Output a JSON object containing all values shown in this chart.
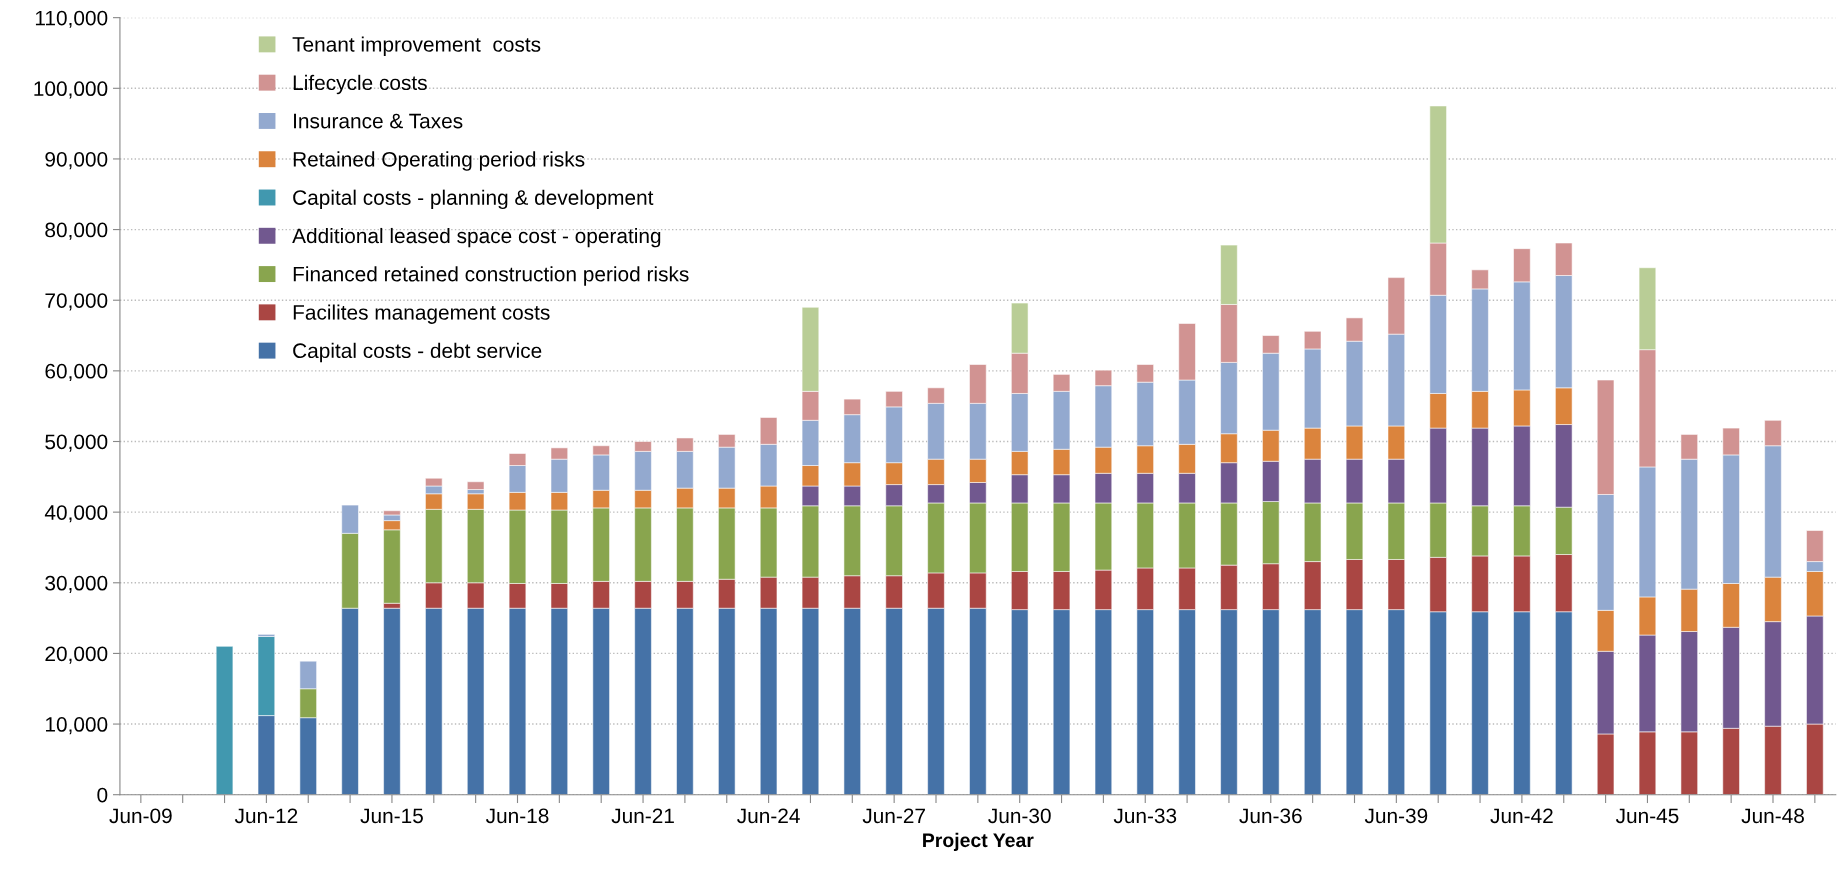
{
  "chart_data": {
    "type": "bar",
    "stacked": true,
    "xlabel": "Project Year",
    "categories": [
      "Jun-09",
      null,
      null,
      "Jun-12",
      null,
      null,
      "Jun-15",
      null,
      null,
      "Jun-18",
      null,
      null,
      "Jun-21",
      null,
      null,
      "Jun-24",
      null,
      null,
      "Jun-27",
      null,
      null,
      "Jun-30",
      null,
      null,
      "Jun-33",
      null,
      null,
      "Jun-36",
      null,
      null,
      "Jun-39",
      null,
      null,
      "Jun-42",
      null,
      null,
      "Jun-45",
      null,
      null,
      "Jun-48",
      null
    ],
    "ylim": [
      0,
      110000
    ],
    "yticks": [
      {
        "value": 0,
        "label": "0"
      },
      {
        "value": 10000,
        "label": "10,000"
      },
      {
        "value": 20000,
        "label": "20,000"
      },
      {
        "value": 30000,
        "label": "30,000"
      },
      {
        "value": 40000,
        "label": "40,000"
      },
      {
        "value": 50000,
        "label": "50,000"
      },
      {
        "value": 60000,
        "label": "60,000"
      },
      {
        "value": 70000,
        "label": "70,000"
      },
      {
        "value": 80000,
        "label": "80,000"
      },
      {
        "value": 90000,
        "label": "90,000"
      },
      {
        "value": 100000,
        "label": "100,000"
      },
      {
        "value": 110000,
        "label": "110,000"
      }
    ],
    "grid": "y",
    "legend": "top left",
    "series": [
      {
        "name": "Capital costs - debt service",
        "color": "#4572a7",
        "values": [
          null,
          null,
          null,
          11200,
          10900,
          26400,
          26400,
          26400,
          26400,
          26400,
          26400,
          26400,
          26400,
          26400,
          26400,
          26400,
          26400,
          26400,
          26400,
          26400,
          26400,
          26200,
          26200,
          26200,
          26200,
          26200,
          26200,
          26200,
          26200,
          26200,
          26200,
          25900,
          25900,
          25900,
          25900,
          null,
          null,
          null,
          null,
          null,
          null
        ]
      },
      {
        "name": "Facilites management costs",
        "color": "#aa4643",
        "values": [
          null,
          null,
          null,
          null,
          null,
          null,
          700,
          3600,
          3600,
          3500,
          3500,
          3800,
          3800,
          3800,
          4100,
          4400,
          4400,
          4600,
          4600,
          5000,
          5000,
          5400,
          5400,
          5600,
          5900,
          5900,
          6300,
          6500,
          6800,
          7100,
          7100,
          7700,
          7900,
          7900,
          8100,
          8600,
          8900,
          8900,
          9400,
          9700,
          10000
        ]
      },
      {
        "name": "Financed retained construction period risks",
        "color": "#89a54e",
        "values": [
          null,
          null,
          null,
          null,
          4100,
          10600,
          10400,
          10400,
          10400,
          10400,
          10400,
          10400,
          10400,
          10400,
          10100,
          9800,
          10100,
          9900,
          9900,
          9900,
          9900,
          9700,
          9700,
          9500,
          9200,
          9200,
          8800,
          8800,
          8300,
          8000,
          8000,
          7700,
          7100,
          7100,
          6700,
          null,
          null,
          null,
          null,
          null,
          null
        ]
      },
      {
        "name": "Additional leased space cost - operating",
        "color": "#71588f",
        "values": [
          null,
          null,
          null,
          null,
          null,
          null,
          null,
          null,
          null,
          null,
          null,
          null,
          null,
          null,
          null,
          null,
          2800,
          2800,
          3000,
          2600,
          2900,
          4000,
          4000,
          4200,
          4200,
          4200,
          5700,
          5700,
          6200,
          6200,
          6200,
          10600,
          11000,
          11300,
          11700,
          11700,
          13700,
          14200,
          14300,
          14800,
          15300
        ]
      },
      {
        "name": "Capital costs - planning & development",
        "color": "#4198af",
        "values": [
          null,
          null,
          21000,
          11200,
          null,
          null,
          null,
          null,
          null,
          null,
          null,
          null,
          null,
          null,
          null,
          null,
          null,
          null,
          null,
          null,
          null,
          null,
          null,
          null,
          null,
          null,
          null,
          null,
          null,
          null,
          null,
          null,
          null,
          null,
          null,
          null,
          null,
          null,
          null,
          null,
          null
        ]
      },
      {
        "name": "Retained Operating period risks",
        "color": "#db843d",
        "values": [
          null,
          null,
          null,
          null,
          null,
          null,
          1300,
          2200,
          2200,
          2500,
          2500,
          2500,
          2500,
          2800,
          2800,
          3100,
          2900,
          3300,
          3100,
          3600,
          3300,
          3300,
          3600,
          3700,
          3900,
          4100,
          4100,
          4400,
          4400,
          4700,
          4700,
          4900,
          5200,
          5100,
          5200,
          5800,
          5400,
          6000,
          6200,
          6300,
          6300
        ]
      },
      {
        "name": "Insurance & Taxes",
        "color": "#93a9cf",
        "values": [
          null,
          null,
          null,
          300,
          3900,
          4000,
          800,
          1100,
          600,
          3800,
          4700,
          5000,
          5500,
          5200,
          5800,
          5900,
          6400,
          6800,
          7900,
          7900,
          7900,
          8200,
          8200,
          8700,
          9000,
          9100,
          10100,
          10900,
          11200,
          12000,
          13000,
          13900,
          14500,
          15300,
          15900,
          16400,
          18400,
          18400,
          18200,
          18600,
          1400
        ]
      },
      {
        "name": "Lifecycle costs",
        "color": "#d19392",
        "values": [
          null,
          null,
          null,
          null,
          null,
          null,
          600,
          1100,
          1100,
          1700,
          1600,
          1300,
          1400,
          1900,
          1800,
          3800,
          4100,
          2200,
          2200,
          2200,
          5500,
          5700,
          2400,
          2200,
          2500,
          8000,
          8200,
          2500,
          2500,
          3300,
          8000,
          7400,
          2700,
          4700,
          4600,
          16200,
          16600,
          3500,
          3800,
          3600,
          4400
        ]
      },
      {
        "name": "Tenant improvement  costs",
        "color": "#b9cd96",
        "values": [
          null,
          null,
          null,
          null,
          null,
          null,
          null,
          null,
          null,
          null,
          null,
          null,
          null,
          null,
          null,
          null,
          11900,
          null,
          null,
          null,
          null,
          7100,
          null,
          null,
          null,
          null,
          8400,
          null,
          null,
          null,
          null,
          19400,
          null,
          null,
          null,
          null,
          11600,
          null,
          null,
          null,
          null
        ]
      }
    ]
  }
}
